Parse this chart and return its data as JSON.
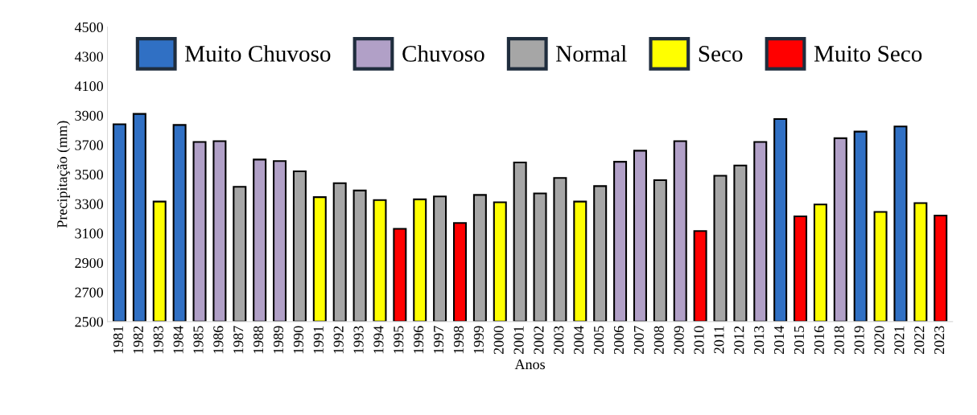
{
  "chart_data": {
    "type": "bar",
    "xlabel": "Anos",
    "ylabel": "Precipitação (mm)",
    "categories": [
      "1981",
      "1982",
      "1983",
      "1984",
      "1985",
      "1986",
      "1987",
      "1988",
      "1989",
      "1990",
      "1991",
      "1992",
      "1993",
      "1994",
      "1995",
      "1996",
      "1997",
      "1998",
      "1999",
      "2000",
      "2001",
      "2002",
      "2003",
      "2004",
      "2005",
      "2006",
      "2007",
      "2008",
      "2009",
      "2010",
      "2011",
      "2012",
      "2013",
      "2014",
      "2015",
      "2016",
      "2018",
      "2019",
      "2020",
      "2021",
      "2022",
      "2023"
    ],
    "series": [
      {
        "name": "Muito Chuvoso",
        "color": "#3070c4",
        "values": [
          3840,
          3910,
          null,
          3835,
          null,
          null,
          null,
          null,
          null,
          null,
          null,
          null,
          null,
          null,
          null,
          null,
          null,
          null,
          null,
          null,
          null,
          null,
          null,
          null,
          null,
          null,
          null,
          null,
          null,
          null,
          null,
          null,
          null,
          3875,
          null,
          null,
          null,
          3790,
          null,
          3825,
          null,
          null
        ]
      },
      {
        "name": "Chuvoso",
        "color": "#b1a0c7",
        "values": [
          null,
          null,
          null,
          null,
          3720,
          3725,
          null,
          3600,
          3590,
          null,
          null,
          null,
          null,
          null,
          null,
          null,
          null,
          null,
          null,
          null,
          null,
          null,
          null,
          null,
          null,
          3585,
          3660,
          null,
          3725,
          null,
          null,
          null,
          3720,
          null,
          null,
          null,
          3745,
          null,
          null,
          null,
          null,
          null
        ]
      },
      {
        "name": "Normal",
        "color": "#a6a6a6",
        "values": [
          null,
          null,
          null,
          null,
          null,
          null,
          3415,
          null,
          null,
          3520,
          null,
          3440,
          3390,
          null,
          null,
          null,
          3350,
          null,
          3360,
          null,
          3580,
          3370,
          3475,
          null,
          3420,
          null,
          null,
          3460,
          null,
          null,
          3490,
          3560,
          null,
          null,
          null,
          null,
          null,
          null,
          null,
          null,
          null,
          null
        ]
      },
      {
        "name": "Seco",
        "color": "#ffff00",
        "values": [
          null,
          null,
          3315,
          null,
          null,
          null,
          null,
          null,
          null,
          null,
          3345,
          null,
          null,
          3325,
          null,
          3330,
          null,
          null,
          null,
          3310,
          null,
          null,
          null,
          3315,
          null,
          null,
          null,
          null,
          null,
          null,
          null,
          null,
          null,
          null,
          null,
          3295,
          null,
          null,
          3245,
          null,
          3305,
          null
        ]
      },
      {
        "name": "Muito Seco",
        "color": "#ff0000",
        "values": [
          null,
          null,
          null,
          null,
          null,
          null,
          null,
          null,
          null,
          null,
          null,
          null,
          null,
          null,
          3130,
          null,
          null,
          3170,
          null,
          null,
          null,
          null,
          null,
          null,
          null,
          null,
          null,
          null,
          null,
          3115,
          null,
          null,
          null,
          null,
          3215,
          null,
          null,
          null,
          null,
          null,
          null,
          3220
        ]
      }
    ],
    "ylim": [
      2500,
      4500
    ],
    "yticks": [
      2500,
      2700,
      2900,
      3100,
      3300,
      3500,
      3700,
      3900,
      4100,
      4300,
      4500
    ],
    "grid": false,
    "legend": "top"
  }
}
